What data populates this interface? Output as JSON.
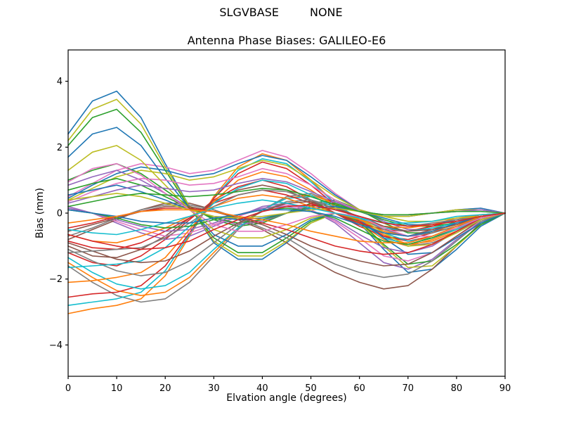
{
  "figure": {
    "suptitle_left": "SLGVBASE",
    "suptitle_right": "NONE"
  },
  "chart_data": {
    "type": "line",
    "title": "Antenna Phase Biases: GALILEO-E6",
    "xlabel": "Elvation angle (degrees)",
    "ylabel": "Bias (mm)",
    "xlim": [
      0,
      90
    ],
    "ylim": [
      -4.95,
      4.95
    ],
    "x_ticks": [
      0,
      10,
      20,
      30,
      40,
      50,
      60,
      70,
      80,
      90
    ],
    "y_ticks": [
      -4,
      -2,
      0,
      2,
      4
    ],
    "grid": false,
    "legend": false,
    "background": "#ffffff",
    "axis_color": "#000000",
    "palette": [
      "#1f77b4",
      "#ff7f0e",
      "#2ca02c",
      "#d62728",
      "#9467bd",
      "#8c564b",
      "#e377c2",
      "#7f7f7f",
      "#bcbd22",
      "#17becf"
    ],
    "x": [
      0,
      5,
      10,
      15,
      20,
      25,
      30,
      35,
      40,
      45,
      50,
      55,
      60,
      65,
      70,
      75,
      80,
      85,
      90
    ],
    "series": [
      {
        "color": "#1f77b4",
        "values": [
          2.4,
          3.4,
          3.7,
          2.9,
          1.5,
          0.2,
          -0.9,
          -1.4,
          -1.4,
          -0.9,
          -0.3,
          0.0,
          -0.3,
          -1.1,
          -1.8,
          -1.7,
          -1.1,
          -0.4,
          0.0
        ]
      },
      {
        "color": "#ff7f0e",
        "values": [
          -3.05,
          -2.9,
          -2.8,
          -2.6,
          -1.9,
          -0.7,
          0.5,
          1.4,
          1.8,
          1.6,
          1.0,
          0.3,
          -0.3,
          -0.8,
          -1.0,
          -0.8,
          -0.5,
          -0.2,
          0.0
        ]
      },
      {
        "color": "#2ca02c",
        "values": [
          1.0,
          1.3,
          1.5,
          1.2,
          0.7,
          0.2,
          -0.2,
          -0.4,
          -0.3,
          0.0,
          0.3,
          0.4,
          0.1,
          -0.3,
          -0.6,
          -0.6,
          -0.4,
          -0.2,
          0.0
        ]
      },
      {
        "color": "#d62728",
        "values": [
          -1.2,
          -1.5,
          -1.6,
          -1.3,
          -0.8,
          -0.2,
          0.4,
          0.8,
          1.0,
          0.8,
          0.4,
          0.0,
          -0.4,
          -0.7,
          -0.8,
          -0.6,
          -0.3,
          -0.1,
          0.0
        ]
      },
      {
        "color": "#9467bd",
        "values": [
          0.2,
          0.0,
          -0.3,
          -0.6,
          -0.8,
          -0.7,
          -0.4,
          -0.1,
          0.2,
          0.3,
          0.1,
          -0.3,
          -0.9,
          -1.5,
          -1.7,
          -1.4,
          -0.8,
          -0.3,
          0.0
        ]
      },
      {
        "color": "#8c564b",
        "values": [
          -0.8,
          -0.5,
          -0.2,
          0.1,
          0.3,
          0.3,
          0.1,
          -0.2,
          -0.5,
          -0.9,
          -1.4,
          -1.8,
          -2.1,
          -2.3,
          -2.2,
          -1.7,
          -1.0,
          -0.3,
          0.0
        ]
      },
      {
        "color": "#e377c2",
        "values": [
          0.5,
          0.9,
          1.3,
          1.5,
          1.4,
          1.2,
          1.3,
          1.6,
          1.9,
          1.7,
          1.2,
          0.6,
          0.1,
          -0.1,
          -0.1,
          0.0,
          0.1,
          0.15,
          0.0
        ]
      },
      {
        "color": "#7f7f7f",
        "values": [
          -1.6,
          -2.1,
          -2.5,
          -2.7,
          -2.6,
          -2.1,
          -1.3,
          -0.5,
          0.1,
          0.5,
          0.6,
          0.3,
          -0.2,
          -0.7,
          -1.0,
          -0.9,
          -0.6,
          -0.2,
          0.0
        ]
      },
      {
        "color": "#bcbd22",
        "values": [
          2.2,
          3.15,
          3.45,
          2.7,
          1.4,
          0.2,
          -0.85,
          -1.3,
          -1.3,
          -0.85,
          -0.3,
          0.0,
          -0.3,
          -1.0,
          -1.65,
          -1.6,
          -1.0,
          -0.35,
          0.0
        ]
      },
      {
        "color": "#17becf",
        "values": [
          -2.8,
          -2.7,
          -2.6,
          -2.4,
          -1.75,
          -0.65,
          0.45,
          1.3,
          1.65,
          1.5,
          0.95,
          0.3,
          -0.25,
          -0.75,
          -0.95,
          -0.75,
          -0.45,
          -0.2,
          0.0
        ]
      },
      {
        "color": "#1f77b4",
        "values": [
          0.45,
          0.85,
          1.2,
          1.4,
          1.3,
          1.1,
          1.2,
          1.5,
          1.75,
          1.6,
          1.1,
          0.55,
          0.1,
          -0.1,
          -0.1,
          0.0,
          0.1,
          0.15,
          0.0
        ]
      },
      {
        "color": "#ff7f0e",
        "values": [
          -1.5,
          -1.95,
          -2.35,
          -2.5,
          -2.4,
          -1.95,
          -1.2,
          -0.45,
          0.1,
          0.45,
          0.55,
          0.3,
          -0.2,
          -0.65,
          -0.95,
          -0.85,
          -0.55,
          -0.2,
          0.0
        ]
      },
      {
        "color": "#2ca02c",
        "values": [
          2.05,
          2.9,
          3.15,
          2.45,
          1.3,
          0.15,
          -0.75,
          -1.2,
          -1.2,
          -0.75,
          -0.25,
          0.0,
          -0.25,
          -0.95,
          -1.55,
          -1.45,
          -0.95,
          -0.35,
          0.0
        ]
      },
      {
        "color": "#d62728",
        "values": [
          -2.55,
          -2.45,
          -2.4,
          -2.2,
          -1.6,
          -0.6,
          0.45,
          1.2,
          1.55,
          1.35,
          0.85,
          0.25,
          -0.25,
          -0.7,
          -0.85,
          -0.7,
          -0.45,
          -0.15,
          0.0
        ]
      },
      {
        "color": "#9467bd",
        "values": [
          0.85,
          1.1,
          1.3,
          1.0,
          0.6,
          0.15,
          -0.15,
          -0.35,
          -0.25,
          0.0,
          0.25,
          0.35,
          0.1,
          -0.25,
          -0.5,
          -0.5,
          -0.35,
          -0.15,
          0.0
        ]
      },
      {
        "color": "#8c564b",
        "values": [
          -1.0,
          -1.3,
          -1.35,
          -1.1,
          -0.7,
          -0.15,
          0.35,
          0.7,
          0.85,
          0.7,
          0.35,
          0.0,
          -0.35,
          -0.6,
          -0.7,
          -0.5,
          -0.25,
          -0.1,
          0.0
        ]
      },
      {
        "color": "#e377c2",
        "values": [
          0.15,
          0.0,
          -0.25,
          -0.5,
          -0.7,
          -0.6,
          -0.35,
          -0.1,
          0.15,
          0.25,
          0.1,
          -0.25,
          -0.75,
          -1.3,
          -1.45,
          -1.2,
          -0.7,
          -0.25,
          0.0
        ]
      },
      {
        "color": "#7f7f7f",
        "values": [
          -0.7,
          -0.45,
          -0.15,
          0.1,
          0.25,
          0.25,
          0.1,
          -0.15,
          -0.45,
          -0.75,
          -1.2,
          -1.55,
          -1.8,
          -1.95,
          -1.85,
          -1.45,
          -0.85,
          -0.25,
          0.0
        ]
      },
      {
        "color": "#bcbd22",
        "values": [
          0.4,
          0.75,
          1.1,
          1.3,
          1.2,
          1.0,
          1.1,
          1.35,
          1.6,
          1.45,
          1.0,
          0.5,
          0.1,
          -0.1,
          -0.1,
          0.0,
          0.1,
          0.1,
          0.0
        ]
      },
      {
        "color": "#17becf",
        "values": [
          -1.35,
          -1.8,
          -2.15,
          -2.3,
          -2.2,
          -1.8,
          -1.1,
          -0.45,
          0.1,
          0.45,
          0.5,
          0.25,
          -0.15,
          -0.6,
          -0.85,
          -0.75,
          -0.5,
          -0.15,
          0.0
        ]
      },
      {
        "color": "#1f77b4",
        "values": [
          1.7,
          2.4,
          2.6,
          2.05,
          1.05,
          0.15,
          -0.65,
          -1.0,
          -1.0,
          -0.65,
          -0.2,
          0.0,
          -0.2,
          -0.75,
          -1.25,
          -1.2,
          -0.75,
          -0.3,
          0.0
        ]
      },
      {
        "color": "#ff7f0e",
        "values": [
          -2.1,
          -2.05,
          -1.95,
          -1.8,
          -1.35,
          -0.5,
          0.35,
          1.0,
          1.25,
          1.1,
          0.7,
          0.2,
          -0.2,
          -0.55,
          -0.7,
          -0.55,
          -0.35,
          -0.15,
          0.0
        ]
      },
      {
        "color": "#2ca02c",
        "values": [
          0.7,
          0.9,
          1.05,
          0.85,
          0.5,
          0.15,
          -0.15,
          -0.3,
          -0.2,
          0.0,
          0.2,
          0.3,
          0.05,
          -0.2,
          -0.4,
          -0.4,
          -0.3,
          -0.15,
          0.0
        ]
      },
      {
        "color": "#d62728",
        "values": [
          -0.85,
          -1.05,
          -1.1,
          -0.9,
          -0.55,
          -0.15,
          0.3,
          0.55,
          0.7,
          0.55,
          0.3,
          0.0,
          -0.3,
          -0.5,
          -0.55,
          -0.4,
          -0.2,
          -0.05,
          0.0
        ]
      },
      {
        "color": "#9467bd",
        "values": [
          0.15,
          0.0,
          -0.2,
          -0.4,
          -0.55,
          -0.5,
          -0.3,
          -0.05,
          0.15,
          0.2,
          0.05,
          -0.2,
          -0.65,
          -1.05,
          -1.2,
          -1.0,
          -0.55,
          -0.2,
          0.0
        ]
      },
      {
        "color": "#8c564b",
        "values": [
          -0.55,
          -0.35,
          -0.15,
          0.05,
          0.2,
          0.2,
          0.05,
          -0.15,
          -0.35,
          -0.65,
          -1.0,
          -1.25,
          -1.45,
          -1.6,
          -1.55,
          -1.2,
          -0.7,
          -0.2,
          0.0
        ]
      },
      {
        "color": "#e377c2",
        "values": [
          0.35,
          0.65,
          0.9,
          1.05,
          1.0,
          0.85,
          0.9,
          1.1,
          1.35,
          1.2,
          0.85,
          0.4,
          0.05,
          -0.05,
          -0.05,
          0.0,
          0.05,
          0.1,
          0.0
        ]
      },
      {
        "color": "#7f7f7f",
        "values": [
          -1.1,
          -1.45,
          -1.75,
          -1.9,
          -1.8,
          -1.45,
          -0.9,
          -0.35,
          0.05,
          0.35,
          0.4,
          0.2,
          -0.15,
          -0.5,
          -0.7,
          -0.6,
          -0.4,
          -0.15,
          0.0
        ]
      },
      {
        "color": "#bcbd22",
        "values": [
          1.3,
          1.85,
          2.05,
          1.6,
          0.85,
          0.1,
          -0.5,
          -0.75,
          -0.75,
          -0.5,
          -0.15,
          0.0,
          -0.15,
          -0.6,
          -1.0,
          -0.95,
          -0.6,
          -0.2,
          0.0
        ]
      },
      {
        "color": "#17becf",
        "values": [
          -1.65,
          -1.6,
          -1.55,
          -1.45,
          -1.05,
          -0.4,
          0.3,
          0.75,
          1.0,
          0.9,
          0.55,
          0.15,
          -0.15,
          -0.45,
          -0.55,
          -0.45,
          -0.3,
          -0.1,
          0.0
        ]
      },
      {
        "color": "#1f77b4",
        "values": [
          0.55,
          0.7,
          0.85,
          0.65,
          0.4,
          0.1,
          -0.1,
          -0.2,
          -0.15,
          0.0,
          0.15,
          0.2,
          0.05,
          -0.15,
          -0.35,
          -0.35,
          -0.2,
          -0.1,
          0.0
        ]
      },
      {
        "color": "#ff7f0e",
        "values": [
          -0.65,
          -0.85,
          -0.9,
          -0.7,
          -0.45,
          -0.1,
          0.2,
          0.45,
          0.55,
          0.45,
          0.2,
          0.0,
          -0.2,
          -0.4,
          -0.45,
          -0.35,
          -0.15,
          -0.05,
          0.0
        ]
      },
      {
        "color": "#2ca02c",
        "values": [
          0.1,
          0.0,
          -0.15,
          -0.35,
          -0.45,
          -0.4,
          -0.2,
          -0.05,
          0.1,
          0.15,
          0.05,
          -0.15,
          -0.5,
          -0.85,
          -0.95,
          -0.75,
          -0.45,
          -0.15,
          0.0
        ]
      },
      {
        "color": "#d62728",
        "values": [
          -0.45,
          -0.3,
          -0.1,
          0.05,
          0.15,
          0.15,
          0.05,
          -0.1,
          -0.3,
          -0.5,
          -0.75,
          -1.0,
          -1.15,
          -1.25,
          -1.2,
          -0.95,
          -0.55,
          -0.15,
          0.0
        ]
      },
      {
        "color": "#9467bd",
        "values": [
          0.3,
          0.5,
          0.7,
          0.85,
          0.75,
          0.65,
          0.7,
          0.9,
          1.05,
          0.95,
          0.65,
          0.35,
          0.05,
          -0.05,
          -0.05,
          0.0,
          0.05,
          0.1,
          0.0
        ]
      },
      {
        "color": "#8c564b",
        "values": [
          -0.9,
          -1.15,
          -1.4,
          -1.5,
          -1.45,
          -1.15,
          -0.7,
          -0.3,
          0.05,
          0.3,
          0.35,
          0.15,
          -0.1,
          -0.4,
          -0.55,
          -0.5,
          -0.35,
          -0.1,
          0.0
        ]
      },
      {
        "color": "#e377c2",
        "values": [
          0.95,
          1.35,
          1.5,
          1.15,
          0.6,
          0.1,
          -0.35,
          -0.55,
          -0.55,
          -0.35,
          -0.1,
          0.0,
          -0.1,
          -0.45,
          -0.7,
          -0.7,
          -0.45,
          -0.15,
          0.0
        ]
      },
      {
        "color": "#7f7f7f",
        "values": [
          -1.2,
          -1.15,
          -1.1,
          -1.05,
          -0.75,
          -0.3,
          0.2,
          0.55,
          0.7,
          0.65,
          0.4,
          0.1,
          -0.1,
          -0.3,
          -0.4,
          -0.3,
          -0.2,
          -0.1,
          0.0
        ]
      },
      {
        "color": "#bcbd22",
        "values": [
          0.4,
          0.5,
          0.6,
          0.5,
          0.3,
          0.1,
          -0.1,
          -0.15,
          -0.1,
          0.0,
          0.1,
          0.15,
          0.05,
          -0.1,
          -0.25,
          -0.25,
          -0.15,
          -0.1,
          0.0
        ]
      },
      {
        "color": "#17becf",
        "values": [
          -0.5,
          -0.6,
          -0.65,
          -0.5,
          -0.3,
          -0.1,
          0.15,
          0.3,
          0.4,
          0.3,
          0.15,
          0.0,
          -0.15,
          -0.3,
          -0.3,
          -0.25,
          -0.1,
          -0.05,
          0.0
        ]
      },
      {
        "color": "#1f77b4",
        "values": [
          0.1,
          0.0,
          -0.1,
          -0.25,
          -0.3,
          -0.3,
          -0.15,
          -0.05,
          0.1,
          0.1,
          0.05,
          -0.1,
          -0.35,
          -0.6,
          -0.7,
          -0.55,
          -0.3,
          -0.1,
          0.0
        ]
      },
      {
        "color": "#ff7f0e",
        "values": [
          -0.3,
          -0.2,
          -0.1,
          0.05,
          0.1,
          0.1,
          0.05,
          -0.1,
          -0.2,
          -0.35,
          -0.55,
          -0.7,
          -0.85,
          -0.9,
          -0.9,
          -0.7,
          -0.4,
          -0.1,
          0.0
        ]
      },
      {
        "color": "#2ca02c",
        "values": [
          0.2,
          0.35,
          0.5,
          0.6,
          0.55,
          0.5,
          0.55,
          0.65,
          0.75,
          0.7,
          0.5,
          0.25,
          0.05,
          -0.05,
          -0.05,
          0.0,
          0.05,
          0.05,
          0.0
        ]
      },
      {
        "color": "#d62728",
        "values": [
          -0.65,
          -0.85,
          -1.0,
          -1.1,
          -1.05,
          -0.85,
          -0.5,
          -0.2,
          0.05,
          0.2,
          0.25,
          0.1,
          -0.1,
          -0.3,
          -0.4,
          -0.35,
          -0.25,
          -0.1,
          0.0
        ]
      }
    ]
  }
}
